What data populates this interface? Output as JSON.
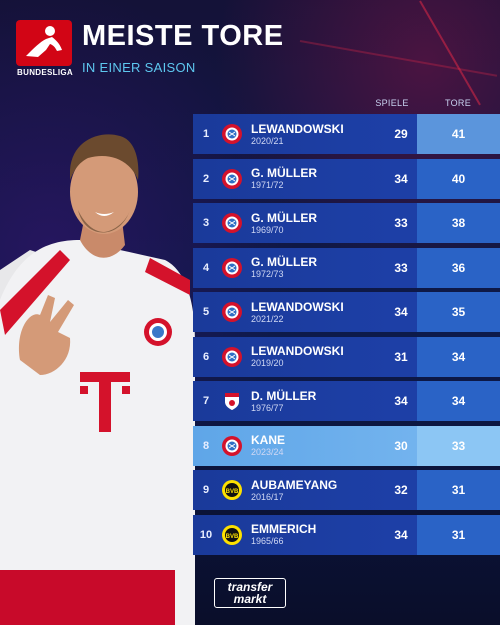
{
  "header": {
    "title": "MEISTE TORE",
    "subtitle": "IN EINER SAISON",
    "logo_text": "BUNDESLIGA"
  },
  "columns": {
    "games": "SPIELE",
    "goals": "TORE"
  },
  "rows": [
    {
      "rank": "1",
      "name": "LEWANDOWSKI",
      "season": "2020/21",
      "games": "29",
      "goals": "41",
      "club": "bayern-crest-icon"
    },
    {
      "rank": "2",
      "name": "G. MÜLLER",
      "season": "1971/72",
      "games": "34",
      "goals": "40",
      "club": "bayern-crest-icon"
    },
    {
      "rank": "3",
      "name": "G. MÜLLER",
      "season": "1969/70",
      "games": "33",
      "goals": "38",
      "club": "bayern-crest-icon"
    },
    {
      "rank": "4",
      "name": "G. MÜLLER",
      "season": "1972/73",
      "games": "33",
      "goals": "36",
      "club": "bayern-crest-icon"
    },
    {
      "rank": "5",
      "name": "LEWANDOWSKI",
      "season": "2021/22",
      "games": "34",
      "goals": "35",
      "club": "bayern-crest-icon"
    },
    {
      "rank": "6",
      "name": "LEWANDOWSKI",
      "season": "2019/20",
      "games": "31",
      "goals": "34",
      "club": "bayern-crest-icon"
    },
    {
      "rank": "7",
      "name": "D. MÜLLER",
      "season": "1976/77",
      "games": "34",
      "goals": "34",
      "club": "koeln-crest-icon"
    },
    {
      "rank": "8",
      "name": "KANE",
      "season": "2023/24",
      "games": "30",
      "goals": "33",
      "club": "bayern-crest-icon"
    },
    {
      "rank": "9",
      "name": "AUBAMEYANG",
      "season": "2016/17",
      "games": "32",
      "goals": "31",
      "club": "dortmund-crest-icon"
    },
    {
      "rank": "10",
      "name": "EMMERICH",
      "season": "1965/66",
      "games": "34",
      "goals": "31",
      "club": "dortmund-crest-icon"
    }
  ],
  "footer": {
    "brand_line1": "transfer",
    "brand_line2": "markt"
  },
  "colors": {
    "bundesliga_red": "#d20515",
    "row_blue": "#1d3fa6",
    "highlight": "#7ab8f0",
    "accent_cyan": "#5ec8f0"
  }
}
